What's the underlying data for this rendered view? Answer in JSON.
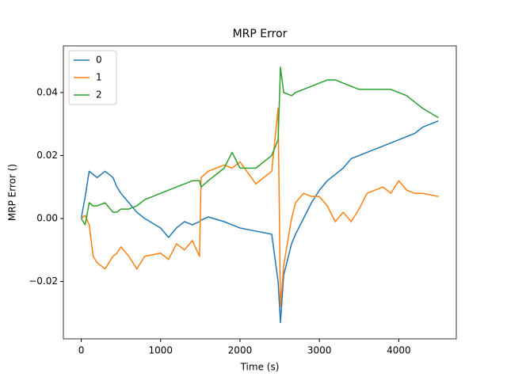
{
  "chart_data": {
    "type": "line",
    "title": "MRP Error",
    "xlabel": "Time (s)",
    "ylabel": "MRP Error ()",
    "x": [
      0,
      50,
      100,
      150,
      200,
      300,
      400,
      450,
      500,
      600,
      700,
      800,
      1000,
      1100,
      1200,
      1300,
      1400,
      1490,
      1510,
      1600,
      1800,
      1900,
      2000,
      2200,
      2400,
      2480,
      2510,
      2550,
      2650,
      2700,
      2800,
      2900,
      3000,
      3100,
      3200,
      3300,
      3400,
      3500,
      3600,
      3800,
      3900,
      4000,
      4100,
      4200,
      4300,
      4500
    ],
    "series": [
      {
        "name": "0",
        "color": "#1f77b4",
        "values": [
          0,
          0.007,
          0.015,
          0.014,
          0.013,
          0.015,
          0.013,
          0.01,
          0.008,
          0.005,
          0.002,
          0.0,
          -0.003,
          -0.006,
          -0.003,
          -0.001,
          -0.002,
          -0.001,
          -0.0005,
          0.0005,
          -0.001,
          -0.002,
          -0.003,
          -0.004,
          -0.005,
          -0.02,
          -0.033,
          -0.018,
          -0.008,
          -0.005,
          0.0,
          0.005,
          0.009,
          0.012,
          0.014,
          0.016,
          0.019,
          0.02,
          0.021,
          0.023,
          0.024,
          0.025,
          0.026,
          0.027,
          0.029,
          0.031
        ]
      },
      {
        "name": "1",
        "color": "#ff7f0e",
        "values": [
          0,
          0.001,
          -0.002,
          -0.012,
          -0.014,
          -0.016,
          -0.012,
          -0.011,
          -0.009,
          -0.012,
          -0.016,
          -0.012,
          -0.011,
          -0.013,
          -0.008,
          -0.01,
          -0.007,
          -0.012,
          0.013,
          0.015,
          0.017,
          0.016,
          0.018,
          0.011,
          0.015,
          0.035,
          -0.028,
          -0.015,
          0.0,
          0.005,
          0.008,
          0.007,
          0.007,
          0.004,
          -0.001,
          0.002,
          -0.001,
          0.003,
          0.008,
          0.01,
          0.008,
          0.012,
          0.009,
          0.008,
          0.008,
          0.007
        ]
      },
      {
        "name": "2",
        "color": "#2ca02c",
        "values": [
          0,
          -0.002,
          0.005,
          0.004,
          0.004,
          0.005,
          0.002,
          0.002,
          0.003,
          0.003,
          0.004,
          0.006,
          0.008,
          0.009,
          0.01,
          0.011,
          0.012,
          0.012,
          0.01,
          0.012,
          0.016,
          0.021,
          0.016,
          0.016,
          0.02,
          0.025,
          0.048,
          0.04,
          0.039,
          0.04,
          0.041,
          0.042,
          0.043,
          0.044,
          0.044,
          0.043,
          0.042,
          0.041,
          0.041,
          0.041,
          0.041,
          0.04,
          0.039,
          0.037,
          0.035,
          0.032
        ]
      }
    ],
    "xlim": [
      -225,
      4725
    ],
    "ylim": [
      -0.0382,
      0.0548
    ],
    "xticks": [
      0,
      1000,
      2000,
      3000,
      4000
    ],
    "yticks": [
      {
        "value": -0.02,
        "label": "−0.02"
      },
      {
        "value": 0,
        "label": "0.00"
      },
      0.02,
      0.04
    ],
    "grid": false,
    "legend": "upper left"
  }
}
